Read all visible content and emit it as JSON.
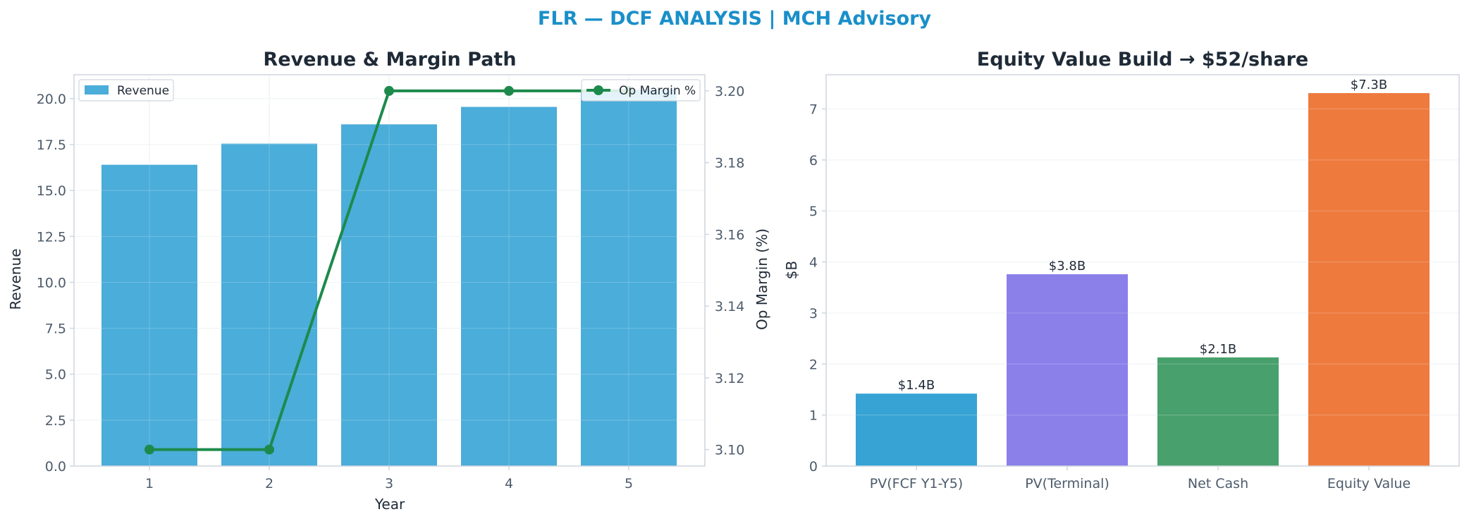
{
  "suptitle": "FLR — DCF ANALYSIS | MCH Advisory",
  "colors": {
    "title_accent": "#1a8fc9",
    "revenue_bar": "#4badd9",
    "margin_line": "#1d8a4c",
    "text_dark": "#1f2a37",
    "tick_text": "#4d5b6b",
    "spine": "#cfd6de",
    "grid": "#eef1f4",
    "equity_bars": [
      "#36a3d4",
      "#8b7fea",
      "#48a06c",
      "#ee7a3e"
    ]
  },
  "chart_data": [
    {
      "type": "bar",
      "title": "Revenue & Margin Path",
      "xlabel": "Year",
      "ylabel": "Revenue",
      "y2label": "Op Margin (%)",
      "categories": [
        "1",
        "2",
        "3",
        "4",
        "5"
      ],
      "ylim": [
        0,
        21.3
      ],
      "yticks": [
        "0.0",
        "2.5",
        "5.0",
        "7.5",
        "10.0",
        "12.5",
        "15.0",
        "17.5",
        "20.0"
      ],
      "y2lim": [
        3.0954,
        3.2045
      ],
      "y2ticks": [
        "3.10",
        "3.12",
        "3.14",
        "3.16",
        "3.18",
        "3.20"
      ],
      "grid": true,
      "series": [
        {
          "name": "Revenue",
          "kind": "bar",
          "axis": "left",
          "values": [
            16.4,
            17.55,
            18.6,
            19.55,
            20.5
          ]
        },
        {
          "name": "Op Margin %",
          "kind": "line",
          "axis": "right",
          "values": [
            3.1,
            3.1,
            3.2,
            3.2,
            3.2
          ]
        }
      ],
      "legend": {
        "left": "upper-left",
        "right": "upper-right"
      }
    },
    {
      "type": "bar",
      "title": "Equity Value Build → $52/share",
      "xlabel": "",
      "ylabel": "$B",
      "categories": [
        "PV(FCF Y1-Y5)",
        "PV(Terminal)",
        "Net Cash",
        "Equity Value"
      ],
      "values": [
        1.42,
        3.76,
        2.13,
        7.31
      ],
      "data_labels": [
        "$1.4B",
        "$3.8B",
        "$2.1B",
        "$7.3B"
      ],
      "ylim": [
        0,
        7.67
      ],
      "yticks": [
        "0",
        "1",
        "2",
        "3",
        "4",
        "5",
        "6",
        "7"
      ],
      "grid": true
    }
  ]
}
